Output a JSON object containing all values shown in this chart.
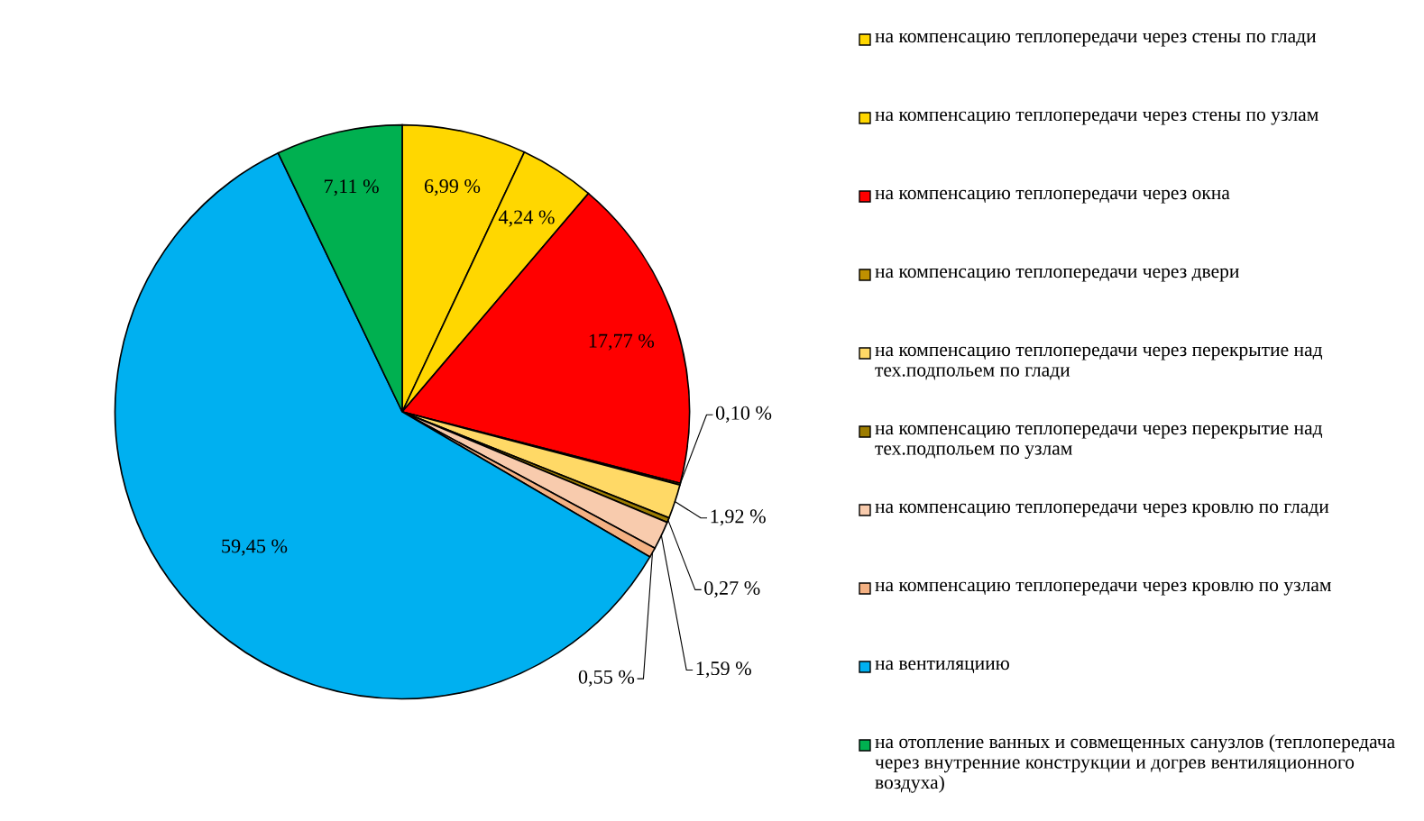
{
  "chart_data": {
    "type": "pie",
    "categories": [
      "на компенсацию теплопередачи через стены по глади",
      "на компенсацию теплопередачи через стены по узлам",
      "на компенсацию теплопередачи через окна",
      "на компенсацию теплопередачи через двери",
      "на компенсацию теплопередачи через перекрытие над тех.подпольем по глади",
      "на компенсацию теплопередачи через перекрытие над тех.подпольем по узлам",
      "на компенсацию теплопередачи через кровлю по глади",
      "на компенсацию теплопередачи через кровлю по узлам",
      "на вентиляциию",
      "на отопление ванных и совмещенных санузлов (теплопередача через внутренние конструкции и догрев вентиляционного воздуха)"
    ],
    "values": [
      6.99,
      4.24,
      17.77,
      0.1,
      1.92,
      0.27,
      1.59,
      0.55,
      59.45,
      7.11
    ],
    "colors": [
      "#ffd700",
      "#ffd700",
      "#ff0000",
      "#bf9000",
      "#ffd966",
      "#9c7c00",
      "#f8cbad",
      "#f4b183",
      "#00b0f0",
      "#00b050"
    ],
    "value_labels": [
      "6,99 %",
      "4,24 %",
      "17,77 %",
      "0,10 %",
      "1,92 %",
      "0,27 %",
      "1,59 %",
      "0,55 %",
      "59,45 %",
      "7,11 %"
    ],
    "legend": "right"
  }
}
